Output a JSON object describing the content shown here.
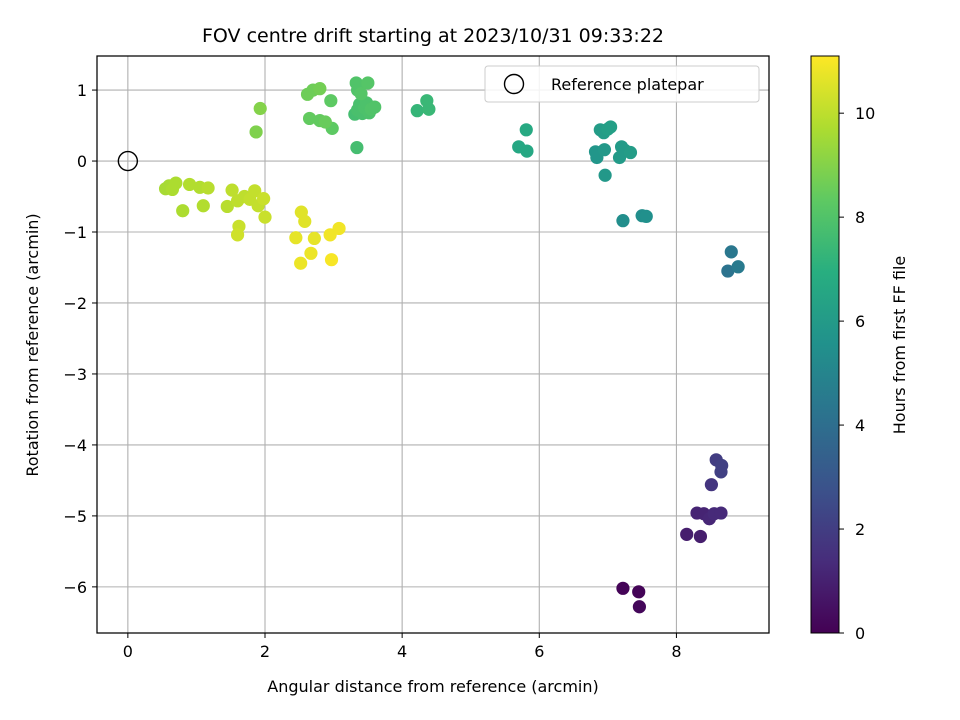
{
  "chart_data": {
    "type": "scatter",
    "title": "FOV centre drift starting at 2023/10/31 09:33:22",
    "xlabel": "Angular distance from reference (arcmin)",
    "ylabel": "Rotation from reference (arcmin)",
    "xlim": [
      -0.45,
      9.35
    ],
    "ylim": [
      -6.65,
      1.48
    ],
    "xticks": [
      0,
      2,
      4,
      6,
      8
    ],
    "yticks": [
      1,
      0,
      -1,
      -2,
      -3,
      -4,
      -5,
      -6
    ],
    "grid": true,
    "legend": {
      "placement": "top-right",
      "label": "Reference platepar"
    },
    "reference_point": {
      "x": 0,
      "y": 0
    },
    "colorbar": {
      "label": "Hours from first FF file",
      "range": [
        0,
        11.1
      ],
      "ticks": [
        0,
        2,
        4,
        6,
        8,
        10
      ],
      "colormap": "viridis"
    },
    "points": [
      {
        "x": 7.22,
        "y": -6.02,
        "h": 0.1
      },
      {
        "x": 7.45,
        "y": -6.07,
        "h": 0.1
      },
      {
        "x": 7.46,
        "y": -6.28,
        "h": 0.2
      },
      {
        "x": 8.15,
        "y": -5.26,
        "h": 0.9
      },
      {
        "x": 8.35,
        "y": -5.29,
        "h": 0.9
      },
      {
        "x": 8.3,
        "y": -4.96,
        "h": 1.1
      },
      {
        "x": 8.4,
        "y": -4.97,
        "h": 1.1
      },
      {
        "x": 8.48,
        "y": -5.04,
        "h": 1.2
      },
      {
        "x": 8.55,
        "y": -4.97,
        "h": 1.3
      },
      {
        "x": 8.65,
        "y": -4.96,
        "h": 1.3
      },
      {
        "x": 8.51,
        "y": -4.56,
        "h": 1.7
      },
      {
        "x": 8.58,
        "y": -4.21,
        "h": 2.0
      },
      {
        "x": 8.65,
        "y": -4.38,
        "h": 2.1
      },
      {
        "x": 8.66,
        "y": -4.29,
        "h": 2.1
      },
      {
        "x": 8.75,
        "y": -1.55,
        "h": 4.2
      },
      {
        "x": 8.8,
        "y": -1.28,
        "h": 4.4
      },
      {
        "x": 8.9,
        "y": -1.49,
        "h": 4.5
      },
      {
        "x": 7.22,
        "y": -0.84,
        "h": 5.4
      },
      {
        "x": 7.5,
        "y": -0.77,
        "h": 5.4
      },
      {
        "x": 7.56,
        "y": -0.78,
        "h": 5.5
      },
      {
        "x": 6.82,
        "y": 0.13,
        "h": 5.8
      },
      {
        "x": 6.84,
        "y": 0.05,
        "h": 5.8
      },
      {
        "x": 6.95,
        "y": 0.16,
        "h": 5.9
      },
      {
        "x": 6.96,
        "y": -0.2,
        "h": 5.9
      },
      {
        "x": 7.17,
        "y": 0.05,
        "h": 6.0
      },
      {
        "x": 7.2,
        "y": 0.2,
        "h": 6.0
      },
      {
        "x": 7.25,
        "y": 0.15,
        "h": 6.0
      },
      {
        "x": 7.33,
        "y": 0.12,
        "h": 6.1
      },
      {
        "x": 6.89,
        "y": 0.44,
        "h": 6.1
      },
      {
        "x": 6.94,
        "y": 0.4,
        "h": 6.1
      },
      {
        "x": 7.0,
        "y": 0.45,
        "h": 6.2
      },
      {
        "x": 7.04,
        "y": 0.48,
        "h": 6.2
      },
      {
        "x": 5.7,
        "y": 0.2,
        "h": 6.6
      },
      {
        "x": 5.82,
        "y": 0.14,
        "h": 6.6
      },
      {
        "x": 5.81,
        "y": 0.44,
        "h": 6.7
      },
      {
        "x": 4.22,
        "y": 0.71,
        "h": 7.3
      },
      {
        "x": 4.36,
        "y": 0.85,
        "h": 7.4
      },
      {
        "x": 4.39,
        "y": 0.73,
        "h": 7.4
      },
      {
        "x": 3.34,
        "y": 0.19,
        "h": 7.7
      },
      {
        "x": 3.31,
        "y": 0.66,
        "h": 7.7
      },
      {
        "x": 3.35,
        "y": 0.72,
        "h": 7.8
      },
      {
        "x": 3.38,
        "y": 0.8,
        "h": 7.8
      },
      {
        "x": 3.42,
        "y": 0.67,
        "h": 7.8
      },
      {
        "x": 3.45,
        "y": 0.75,
        "h": 7.9
      },
      {
        "x": 3.48,
        "y": 0.82,
        "h": 7.9
      },
      {
        "x": 3.52,
        "y": 0.68,
        "h": 7.9
      },
      {
        "x": 3.55,
        "y": 0.73,
        "h": 8.0
      },
      {
        "x": 3.6,
        "y": 0.76,
        "h": 8.0
      },
      {
        "x": 3.33,
        "y": 1.1,
        "h": 8.0
      },
      {
        "x": 3.35,
        "y": 1.0,
        "h": 8.0
      },
      {
        "x": 3.5,
        "y": 1.1,
        "h": 8.1
      },
      {
        "x": 3.4,
        "y": 0.95,
        "h": 8.1
      },
      {
        "x": 2.98,
        "y": 0.46,
        "h": 8.3
      },
      {
        "x": 2.96,
        "y": 0.85,
        "h": 8.3
      },
      {
        "x": 2.65,
        "y": 0.6,
        "h": 8.4
      },
      {
        "x": 2.8,
        "y": 0.57,
        "h": 8.4
      },
      {
        "x": 2.88,
        "y": 0.55,
        "h": 8.5
      },
      {
        "x": 2.62,
        "y": 0.94,
        "h": 8.6
      },
      {
        "x": 2.7,
        "y": 1.0,
        "h": 8.6
      },
      {
        "x": 2.8,
        "y": 1.02,
        "h": 8.7
      },
      {
        "x": 1.87,
        "y": 0.41,
        "h": 8.9
      },
      {
        "x": 1.93,
        "y": 0.74,
        "h": 9.0
      },
      {
        "x": 0.55,
        "y": -0.39,
        "h": 9.6
      },
      {
        "x": 0.6,
        "y": -0.35,
        "h": 9.6
      },
      {
        "x": 0.65,
        "y": -0.4,
        "h": 9.7
      },
      {
        "x": 0.7,
        "y": -0.31,
        "h": 9.7
      },
      {
        "x": 0.8,
        "y": -0.7,
        "h": 9.7
      },
      {
        "x": 0.9,
        "y": -0.33,
        "h": 9.8
      },
      {
        "x": 1.05,
        "y": -0.37,
        "h": 9.8
      },
      {
        "x": 1.1,
        "y": -0.63,
        "h": 9.8
      },
      {
        "x": 1.17,
        "y": -0.38,
        "h": 9.9
      },
      {
        "x": 1.45,
        "y": -0.64,
        "h": 9.9
      },
      {
        "x": 1.52,
        "y": -0.41,
        "h": 10.0
      },
      {
        "x": 1.6,
        "y": -0.56,
        "h": 10.0
      },
      {
        "x": 1.7,
        "y": -0.5,
        "h": 10.0
      },
      {
        "x": 1.78,
        "y": -0.54,
        "h": 10.1
      },
      {
        "x": 1.85,
        "y": -0.42,
        "h": 10.1
      },
      {
        "x": 1.9,
        "y": -0.63,
        "h": 10.1
      },
      {
        "x": 1.98,
        "y": -0.53,
        "h": 10.2
      },
      {
        "x": 2.0,
        "y": -0.79,
        "h": 10.2
      },
      {
        "x": 1.62,
        "y": -0.92,
        "h": 10.2
      },
      {
        "x": 1.6,
        "y": -1.04,
        "h": 10.3
      },
      {
        "x": 2.53,
        "y": -0.72,
        "h": 10.6
      },
      {
        "x": 2.58,
        "y": -0.85,
        "h": 10.6
      },
      {
        "x": 2.45,
        "y": -1.08,
        "h": 10.7
      },
      {
        "x": 2.72,
        "y": -1.09,
        "h": 10.7
      },
      {
        "x": 2.67,
        "y": -1.3,
        "h": 10.8
      },
      {
        "x": 2.52,
        "y": -1.44,
        "h": 10.8
      },
      {
        "x": 2.95,
        "y": -1.04,
        "h": 10.9
      },
      {
        "x": 3.08,
        "y": -0.95,
        "h": 10.9
      },
      {
        "x": 2.97,
        "y": -1.39,
        "h": 11.0
      }
    ]
  }
}
